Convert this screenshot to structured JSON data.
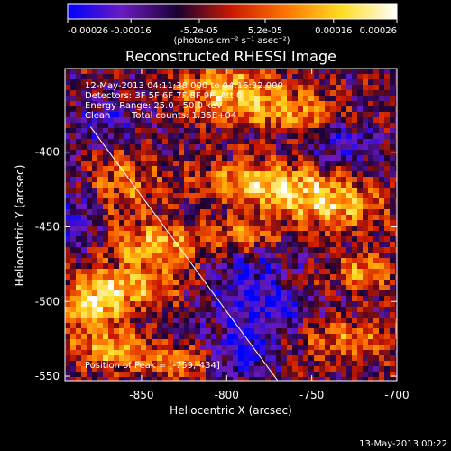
{
  "chart_data": {
    "type": "heatmap",
    "title": "Reconstructed RHESSI Image",
    "xlabel": "Heliocentric X (arcsec)",
    "ylabel": "Heliocentric Y (arcsec)",
    "xlim": [
      -895,
      -700
    ],
    "ylim": [
      -553,
      -344
    ],
    "xticks": [
      -850,
      -800,
      -750,
      -700
    ],
    "xtick_labels": [
      "-850",
      "-800",
      "-750",
      "-700"
    ],
    "yticks": [
      -400,
      -450,
      -500,
      -550
    ],
    "ytick_labels": [
      "-400",
      "-450",
      "-500",
      "-550"
    ],
    "colorbar": {
      "range": [
        -0.00026,
        0.00026
      ],
      "ticks": [
        -0.00026,
        -0.00016,
        -5.2e-05,
        5.2e-05,
        0.00016,
        0.00026
      ],
      "tick_labels": [
        "-0.00026",
        "-0.00016",
        "-5.2e-05",
        "5.2e-05",
        "0.00016",
        "0.00026"
      ],
      "unit": "(photons cm⁻² s⁻¹ asec⁻²)",
      "colors": [
        "#0000ff",
        "#6a1bbf",
        "#1a0033",
        "#cc1a00",
        "#ff7700",
        "#ffdd22",
        "#ffffff"
      ]
    },
    "annotations": {
      "time_range": "12-May-2013 04:11:38.000 to 04:16:32.000",
      "detectors": "Detectors: 3F 5F 6F 7F 8F 9F, Att 0",
      "energy": "Energy Range: 25.0 - 50.0 keV",
      "method": "Clean",
      "counts": "Total counts: 1.35E+04",
      "peak": "Position of Peak = [-759,-434]"
    },
    "limb_line": {
      "x": [
        -880,
        -770
      ],
      "y": [
        -383,
        -553
      ]
    },
    "peak_position": [
      -759,
      -434
    ],
    "hot_regions": [
      {
        "x": -800,
        "y": -360,
        "sx": 30,
        "sy": 18,
        "a": 0.9
      },
      {
        "x": -760,
        "y": -372,
        "sx": 25,
        "sy": 14,
        "a": 0.7
      },
      {
        "x": -780,
        "y": -420,
        "sx": 35,
        "sy": 14,
        "a": 1.0
      },
      {
        "x": -740,
        "y": -435,
        "sx": 30,
        "sy": 16,
        "a": 1.0
      },
      {
        "x": -860,
        "y": -420,
        "sx": 20,
        "sy": 22,
        "a": 0.6
      },
      {
        "x": -840,
        "y": -462,
        "sx": 28,
        "sy": 14,
        "a": 0.9
      },
      {
        "x": -790,
        "y": -455,
        "sx": 20,
        "sy": 10,
        "a": 0.7
      },
      {
        "x": -860,
        "y": -490,
        "sx": 30,
        "sy": 14,
        "a": 0.9
      },
      {
        "x": -880,
        "y": -505,
        "sx": 18,
        "sy": 12,
        "a": 1.0
      },
      {
        "x": -870,
        "y": -530,
        "sx": 22,
        "sy": 12,
        "a": 0.9
      },
      {
        "x": -830,
        "y": -540,
        "sx": 25,
        "sy": 10,
        "a": 0.7
      },
      {
        "x": -730,
        "y": -525,
        "sx": 30,
        "sy": 14,
        "a": 0.6
      },
      {
        "x": -720,
        "y": -480,
        "sx": 16,
        "sy": 12,
        "a": 0.8
      },
      {
        "x": -760,
        "y": -487,
        "sx": 18,
        "sy": 8,
        "a": 0.5
      }
    ],
    "cold_regions": [
      {
        "x": -780,
        "y": -495,
        "sx": 30,
        "sy": 25,
        "a": 1.0
      },
      {
        "x": -870,
        "y": -380,
        "sx": 18,
        "sy": 16,
        "a": 0.6
      },
      {
        "x": -730,
        "y": -395,
        "sx": 18,
        "sy": 14,
        "a": 0.7
      },
      {
        "x": -790,
        "y": -535,
        "sx": 20,
        "sy": 16,
        "a": 0.8
      },
      {
        "x": -890,
        "y": -445,
        "sx": 14,
        "sy": 20,
        "a": 0.7
      }
    ]
  },
  "footer": {
    "timestamp": "13-May-2013 00:22"
  }
}
